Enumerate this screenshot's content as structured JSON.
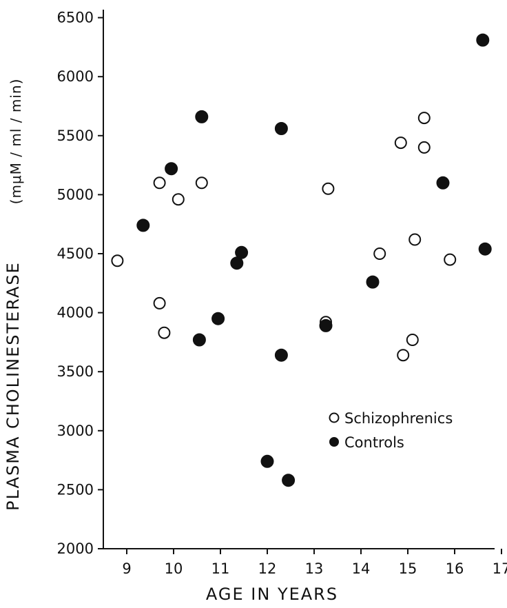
{
  "chart_data": {
    "type": "scatter",
    "title": "",
    "xlabel": "AGE IN YEARS",
    "ylabel": "PLASMA CHOLINESTERASE",
    "yunits": "(mμM / ml / min)",
    "xlim": [
      8.5,
      17
    ],
    "ylim": [
      2000,
      6600
    ],
    "xticks": [
      "9",
      "10",
      "11",
      "12",
      "13",
      "14",
      "15",
      "16",
      "17"
    ],
    "yticks": [
      "2000",
      "2500",
      "3000",
      "3500",
      "4000",
      "4500",
      "5000",
      "5500",
      "6000",
      "6500"
    ],
    "grid": false,
    "legend_position": "center-right",
    "series": [
      {
        "name": "Schizophrenics",
        "marker": "open-circle",
        "points": [
          {
            "x": 8.8,
            "y": 4440
          },
          {
            "x": 9.7,
            "y": 5100
          },
          {
            "x": 9.7,
            "y": 4080
          },
          {
            "x": 9.8,
            "y": 3830
          },
          {
            "x": 10.1,
            "y": 4960
          },
          {
            "x": 10.6,
            "y": 5100
          },
          {
            "x": 13.25,
            "y": 3920
          },
          {
            "x": 13.3,
            "y": 5050
          },
          {
            "x": 14.4,
            "y": 4500
          },
          {
            "x": 14.85,
            "y": 5440
          },
          {
            "x": 14.9,
            "y": 3640
          },
          {
            "x": 15.1,
            "y": 3770
          },
          {
            "x": 15.15,
            "y": 4620
          },
          {
            "x": 15.35,
            "y": 5650
          },
          {
            "x": 15.35,
            "y": 5400
          },
          {
            "x": 15.9,
            "y": 4450
          }
        ]
      },
      {
        "name": "Controls",
        "marker": "filled-circle",
        "points": [
          {
            "x": 9.35,
            "y": 4740
          },
          {
            "x": 9.95,
            "y": 5220
          },
          {
            "x": 10.55,
            "y": 3770
          },
          {
            "x": 10.6,
            "y": 5660
          },
          {
            "x": 10.95,
            "y": 3950
          },
          {
            "x": 11.35,
            "y": 4420
          },
          {
            "x": 11.45,
            "y": 4510
          },
          {
            "x": 12.0,
            "y": 2740
          },
          {
            "x": 12.3,
            "y": 5560
          },
          {
            "x": 12.3,
            "y": 3640
          },
          {
            "x": 12.45,
            "y": 2580
          },
          {
            "x": 13.25,
            "y": 3890
          },
          {
            "x": 14.25,
            "y": 4260
          },
          {
            "x": 15.75,
            "y": 5100
          },
          {
            "x": 16.6,
            "y": 6310
          },
          {
            "x": 16.65,
            "y": 4540
          }
        ]
      }
    ]
  }
}
